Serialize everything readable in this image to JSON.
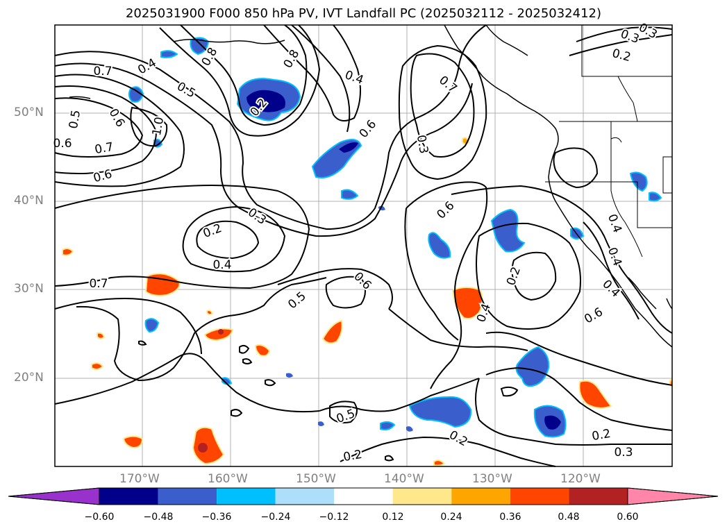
{
  "title": "2025031900 F000 850 hPa PV, IVT Landfall PC (2025032112 - 2025032412)",
  "latitude_labels": [
    "50°N",
    "40°N",
    "30°N",
    "20°N"
  ],
  "longitude_labels": [
    "170°W",
    "160°W",
    "150°W",
    "140°W",
    "130°W",
    "120°W"
  ],
  "contour_labels": [
    "0.7",
    "0.4",
    "0.5",
    "0.8",
    "1.0",
    "0.5",
    "0.6",
    "0.7",
    "0.6",
    "0.8",
    "0.6",
    "0.4",
    "0.7",
    "0.6",
    "0.3",
    "0.6",
    "0.3",
    "0.2",
    "0.4",
    "0.7",
    "0.6",
    "0.5",
    "0.4",
    "0.2",
    "0.4",
    "0.4",
    "0.4",
    "0.6",
    "0.5",
    "0.2",
    "0.2",
    "0.3",
    "0.2",
    "0.3",
    "0.2",
    "0.3",
    "0.2"
  ],
  "colorbar": {
    "ticks": [
      "−0.60",
      "−0.48",
      "−0.36",
      "−0.24",
      "−0.12",
      "0.12",
      "0.24",
      "0.36",
      "0.48",
      "0.60"
    ],
    "colors": [
      "#9932CC",
      "#00008B",
      "#3A5FCD",
      "#00BFFF",
      "#ADDFFA",
      "#FFFFFF",
      "#FFE88C",
      "#FFA500",
      "#FF4500",
      "#B22222",
      "#FF86A8"
    ]
  },
  "shading_colors": {
    "neg_strong": "#00008B",
    "neg_mid": "#3A5FCD",
    "neg_light": "#00BFFF",
    "pos_light": "#FFE88C",
    "pos_mid": "#FFA500",
    "pos_strong": "#FF4500",
    "pos_max": "#B22222"
  }
}
